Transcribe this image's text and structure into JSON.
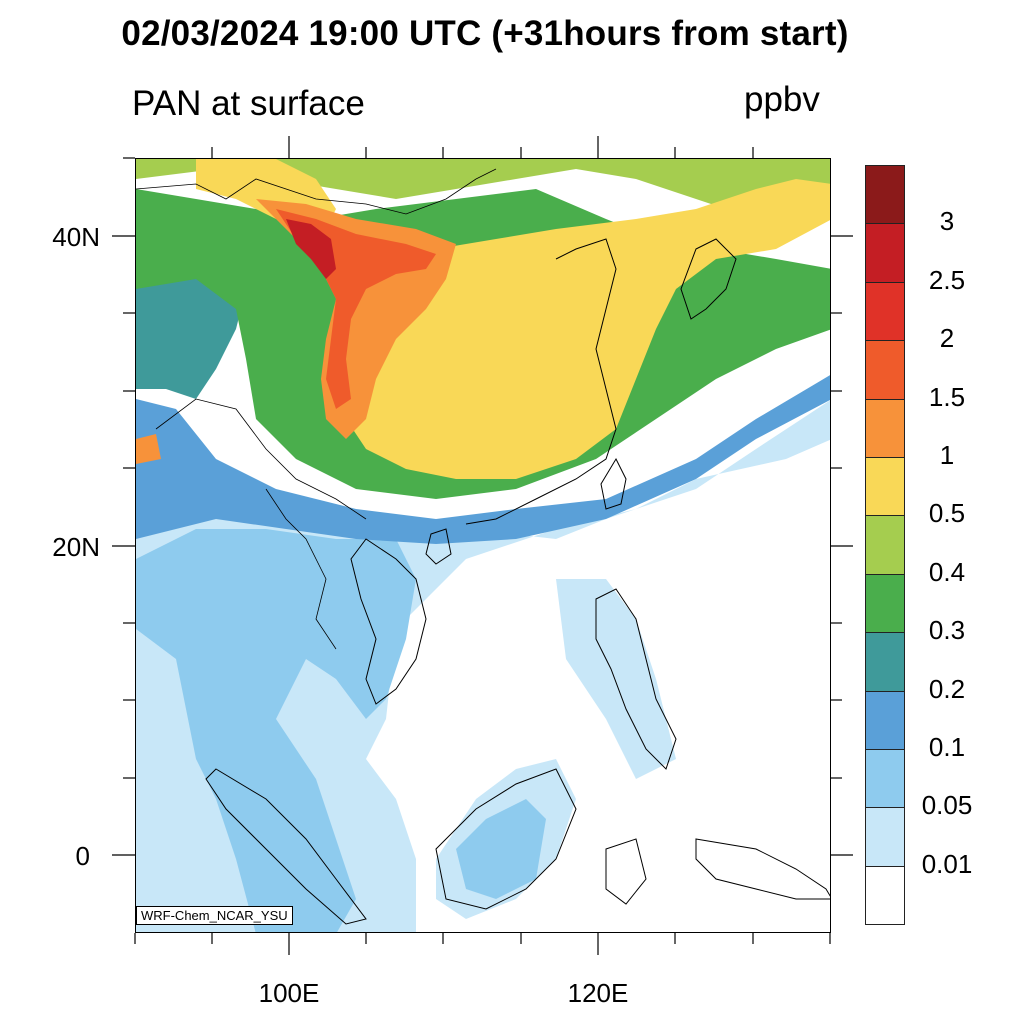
{
  "title": "02/03/2024 19:00 UTC (+31hours from start)",
  "subtitle_left": "PAN at surface",
  "subtitle_right": "ppbv",
  "lat_labels": [
    "40N",
    "20N",
    "0"
  ],
  "lon_labels": [
    "100E",
    "120E"
  ],
  "credit": "WRF-Chem_NCAR_YSU",
  "legend": {
    "colors": [
      "#8b1a1a",
      "#c41e24",
      "#e03228",
      "#ef5b2b",
      "#f7923a",
      "#f9d857",
      "#a5cd4f",
      "#4aae4c",
      "#3f9a9a",
      "#5aa0d8",
      "#8ecbee",
      "#c8e7f8",
      "#ffffff"
    ],
    "labels": [
      "3",
      "2.5",
      "2",
      "1.5",
      "1",
      "0.5",
      "0.4",
      "0.3",
      "0.2",
      "0.1",
      "0.05",
      "0.01"
    ]
  },
  "map_regions": {
    "colors": {
      "very_high": "#c41e24",
      "high": "#ef5b2b",
      "elevated": "#f7923a",
      "moderate": "#f9d857",
      "low_moderate": "#a5cd4f",
      "low": "#4aae4c",
      "lowish": "#3f9a9a",
      "very_low": "#5aa0d8",
      "trace": "#8ecbee",
      "minimal": "#c8e7f8",
      "none": "#ffffff"
    }
  }
}
